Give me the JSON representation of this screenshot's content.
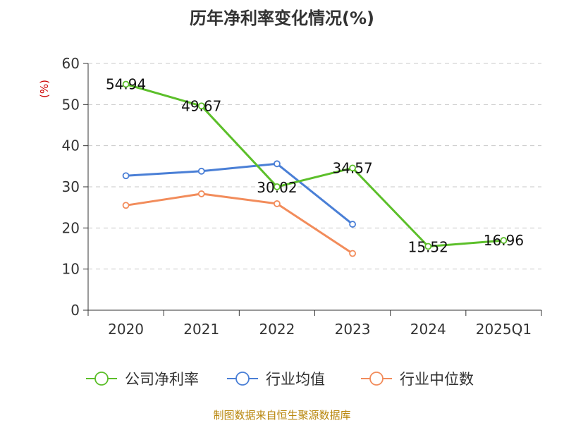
{
  "chart_data": {
    "type": "line",
    "title": "历年净利率变化情况(%)",
    "ylabel": "(%)",
    "xlabel": "",
    "categories": [
      "2020",
      "2021",
      "2022",
      "2023",
      "2024",
      "2025Q1"
    ],
    "ylim": [
      0,
      60
    ],
    "yticks": [
      0,
      10,
      20,
      30,
      40,
      50,
      60
    ],
    "grid": true,
    "legend_position": "bottom",
    "series": [
      {
        "name": "公司净利率",
        "color": "#5cbf2a",
        "values": [
          54.94,
          49.67,
          30.02,
          34.57,
          15.52,
          16.96
        ],
        "labels": [
          "54.94",
          "49.67",
          "30.02",
          "34.57",
          "15.52",
          "16.96"
        ]
      },
      {
        "name": "行业均值",
        "color": "#4a7fd6",
        "values": [
          32.7,
          33.8,
          35.6,
          20.9,
          null,
          null
        ]
      },
      {
        "name": "行业中位数",
        "color": "#f28c5b",
        "values": [
          25.5,
          28.3,
          25.9,
          13.8,
          null,
          null
        ]
      }
    ],
    "source": "制图数据来自恒生聚源数据库"
  }
}
